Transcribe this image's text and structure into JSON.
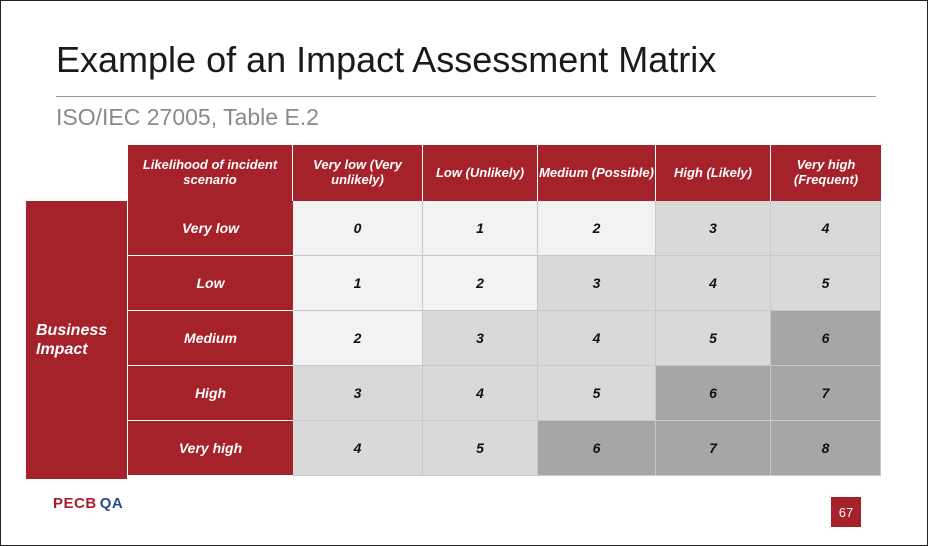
{
  "slide": {
    "title": "Example of an Impact Assessment Matrix",
    "subtitle": "ISO/IEC 27005, Table E.2",
    "page_number": "67",
    "logo_text": "PECB",
    "logo_badge": "QA"
  },
  "matrix": {
    "corner_label": "Likelihood of incident scenario",
    "side_label": "Business Impact",
    "columns": [
      "Very low (Very unlikely)",
      "Low (Unlikely)",
      "Medium (Possible)",
      "High (Likely)",
      "Very high (Frequent)"
    ],
    "rows": [
      {
        "label": "Very low",
        "values": [
          "0",
          "1",
          "2",
          "3",
          "4"
        ]
      },
      {
        "label": "Low",
        "values": [
          "1",
          "2",
          "3",
          "4",
          "5"
        ]
      },
      {
        "label": "Medium",
        "values": [
          "2",
          "3",
          "4",
          "5",
          "6"
        ]
      },
      {
        "label": "High",
        "values": [
          "3",
          "4",
          "5",
          "6",
          "7"
        ]
      },
      {
        "label": "Very high",
        "values": [
          "4",
          "5",
          "6",
          "7",
          "8"
        ]
      }
    ],
    "colors": {
      "header": "#a5222b",
      "low_band": "#f2f2f2",
      "mid_band": "#d9d9d9",
      "high_band": "#a6a6a6"
    }
  }
}
